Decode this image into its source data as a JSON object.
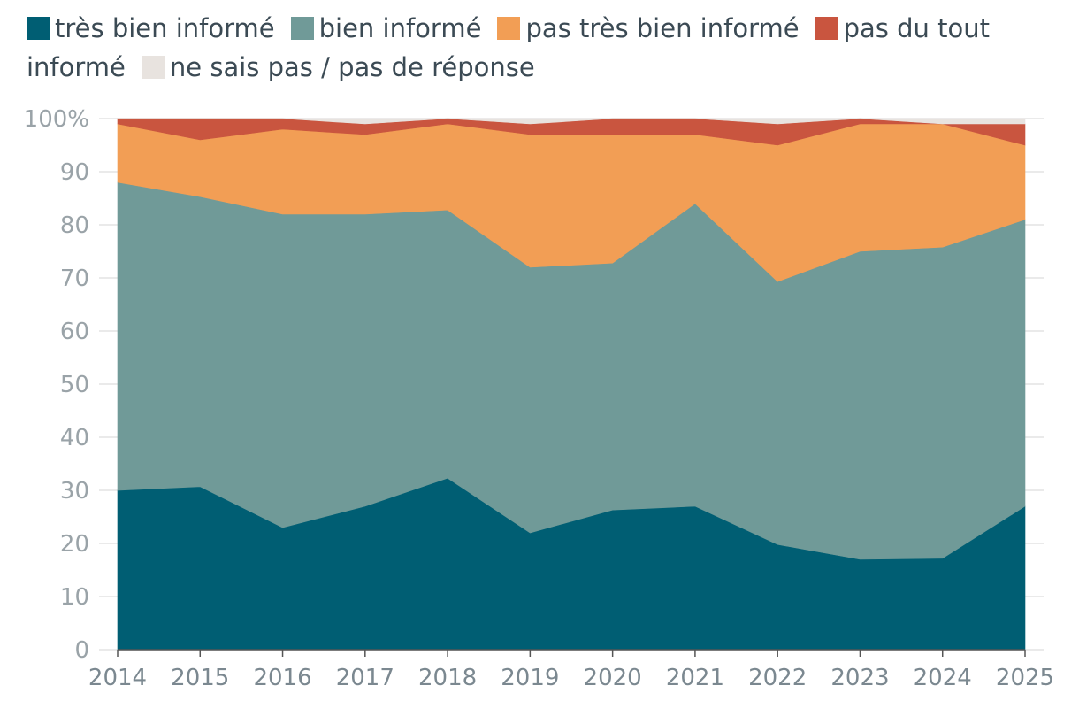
{
  "chart_data": {
    "type": "area",
    "stacked": true,
    "x": [
      "2014",
      "2015",
      "2016",
      "2017",
      "2018",
      "2019",
      "2020",
      "2021",
      "2022",
      "2023",
      "2024",
      "2025"
    ],
    "series": [
      {
        "name": "très bien informé",
        "color": "#005e73",
        "values": [
          30,
          30.7,
          23,
          27,
          32.3,
          22,
          26.3,
          27,
          19.8,
          17,
          17.2,
          27
        ]
      },
      {
        "name": "bien informé",
        "color": "#709a98",
        "values": [
          58,
          54.6,
          59,
          55,
          50.5,
          50,
          46.5,
          57,
          49.5,
          58,
          58.6,
          54
        ]
      },
      {
        "name": "pas très bien informé",
        "color": "#f29e55",
        "values": [
          11,
          10.7,
          16,
          15,
          16.2,
          25,
          24.2,
          13,
          25.7,
          24,
          23.2,
          14
        ]
      },
      {
        "name": "pas du tout informé",
        "color": "#c9553f",
        "values": [
          1,
          4,
          2,
          2,
          1,
          2,
          3,
          3,
          4,
          1,
          0,
          4
        ]
      },
      {
        "name": "ne sais pas / pas de réponse",
        "color": "#e8e3df",
        "values": [
          0,
          0,
          0,
          1,
          0,
          1,
          0,
          0,
          1,
          0,
          1,
          1
        ]
      }
    ],
    "ylim": [
      0,
      100
    ],
    "yticks": [
      "0",
      "10",
      "20",
      "30",
      "40",
      "50",
      "60",
      "70",
      "80",
      "90",
      "100%"
    ],
    "grid": true,
    "legend": "top"
  }
}
